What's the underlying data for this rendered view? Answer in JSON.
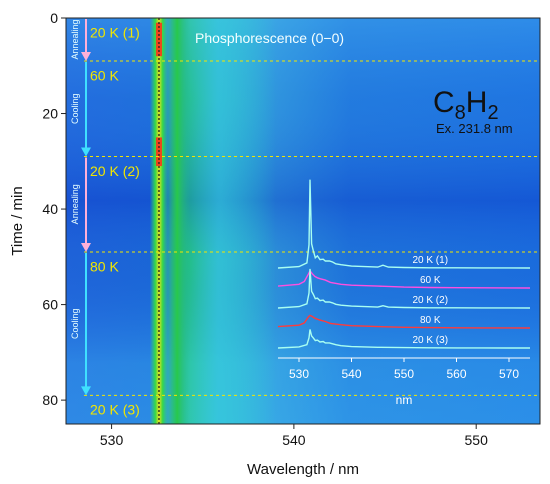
{
  "chart_data": [
    {
      "type": "heatmap",
      "title": "",
      "xlabel": "Wavelength / nm",
      "ylabel": "Time / min",
      "xlim": [
        527.5,
        553.5
      ],
      "ylim": [
        0,
        85
      ],
      "y_inverted": true,
      "xticks": [
        530,
        540,
        550
      ],
      "yticks": [
        0,
        20,
        40,
        60,
        80
      ],
      "grid": false,
      "colormap": "blue-cyan-green-yellow-red",
      "bands": [
        {
          "center": 532.6,
          "width": 0.25,
          "intensity": "high"
        },
        {
          "center": 533.6,
          "width": 0.35,
          "intensity": "medium"
        },
        {
          "center": 536.0,
          "width": 1.5,
          "intensity": "low"
        }
      ],
      "peak_marker_x": 532.6,
      "annotations": {
        "peak_label": "Phosphorescence (0−0)",
        "molecule": "C",
        "molecule_sub1": "8",
        "molecule_mid": "H",
        "molecule_sub2": "2",
        "excitation": "Ex. 231.8 nm"
      },
      "stages": [
        {
          "label": "20 K (1)",
          "time": 3
        },
        {
          "label": "60 K",
          "time": 12
        },
        {
          "label": "20 K (2)",
          "time": 32
        },
        {
          "label": "80 K",
          "time": 52
        },
        {
          "label": "20 K (3)",
          "time": 82
        }
      ],
      "stage_boundaries": [
        9,
        29,
        49,
        79
      ],
      "processes": [
        {
          "label": "Annealing",
          "from": 0,
          "to": 9
        },
        {
          "label": "Cooling",
          "from": 9,
          "to": 29
        },
        {
          "label": "Annealing",
          "from": 29,
          "to": 49
        },
        {
          "label": "Cooling",
          "from": 49,
          "to": 79
        }
      ]
    },
    {
      "type": "line",
      "title": "",
      "xlabel": "nm",
      "ylabel": "",
      "xlim": [
        526,
        574
      ],
      "xticks": [
        530,
        540,
        550,
        560,
        570
      ],
      "grid": false,
      "series": [
        {
          "name": "20 K (1)",
          "color": "#a8fff2",
          "offset": 4,
          "x": [
            526,
            530,
            531.5,
            531.9,
            532.1,
            532.4,
            532.7,
            533.1,
            533.5,
            534,
            534.6,
            535,
            535.8,
            536.4,
            537,
            538,
            540,
            545,
            546,
            547,
            550,
            555,
            560,
            565,
            570,
            574
          ],
          "y": [
            0,
            0.15,
            0.55,
            2.5,
            9.5,
            2.6,
            1.9,
            1.1,
            1.3,
            0.9,
            0.95,
            0.75,
            0.75,
            0.65,
            0.45,
            0.35,
            0.2,
            0.1,
            0.3,
            0.1,
            0.05,
            0.02,
            0.02,
            0.01,
            0.01,
            0
          ]
        },
        {
          "name": "60 K",
          "color": "#ff4fe0",
          "offset": 3,
          "x": [
            526,
            530,
            531,
            531.8,
            532.1,
            532.5,
            533,
            533.5,
            534,
            535,
            536,
            538,
            540,
            545,
            550,
            555,
            560,
            565,
            570,
            574
          ],
          "y": [
            0.2,
            0.4,
            0.7,
            1.5,
            1.85,
            1.55,
            1.25,
            1.1,
            1.0,
            0.85,
            0.6,
            0.4,
            0.3,
            0.2,
            0.1,
            0.05,
            0.03,
            0.02,
            0.01,
            0
          ]
        },
        {
          "name": "20 K (2)",
          "color": "#a8fff2",
          "offset": 2,
          "x": [
            526,
            530,
            531.5,
            531.9,
            532.1,
            532.4,
            532.7,
            533.1,
            533.5,
            534,
            534.6,
            535,
            535.8,
            536.4,
            537,
            538,
            540,
            545,
            546,
            547,
            550,
            555,
            560,
            565,
            570,
            574
          ],
          "y": [
            0,
            0.15,
            0.45,
            1.6,
            4.2,
            1.8,
            1.5,
            1.0,
            1.05,
            0.8,
            0.85,
            0.65,
            0.65,
            0.55,
            0.4,
            0.3,
            0.2,
            0.1,
            0.25,
            0.1,
            0.05,
            0.02,
            0.02,
            0.01,
            0.01,
            0
          ]
        },
        {
          "name": "80 K",
          "color": "#ff3b3b",
          "offset": 1,
          "x": [
            526,
            530,
            531,
            531.8,
            532.1,
            532.5,
            533,
            533.5,
            534,
            535,
            536,
            538,
            540,
            545,
            550,
            555,
            560,
            565,
            570,
            574
          ],
          "y": [
            0.15,
            0.3,
            0.55,
            1.2,
            1.35,
            1.25,
            1.05,
            0.95,
            0.85,
            0.7,
            0.5,
            0.35,
            0.25,
            0.15,
            0.08,
            0.04,
            0.02,
            0.01,
            0.01,
            0
          ]
        },
        {
          "name": "20 K (3)",
          "color": "#a8fff2",
          "offset": 0,
          "x": [
            526,
            530,
            531.5,
            531.9,
            532.1,
            532.4,
            532.7,
            533.1,
            533.5,
            534,
            534.6,
            535,
            535.8,
            536.4,
            537,
            538,
            540,
            545,
            550,
            555,
            560,
            565,
            570,
            574
          ],
          "y": [
            0,
            0.12,
            0.35,
            1.1,
            2.0,
            1.3,
            1.1,
            0.8,
            0.85,
            0.65,
            0.7,
            0.55,
            0.55,
            0.45,
            0.35,
            0.25,
            0.15,
            0.08,
            0.04,
            0.02,
            0.01,
            0.01,
            0.005,
            0
          ]
        }
      ]
    }
  ]
}
